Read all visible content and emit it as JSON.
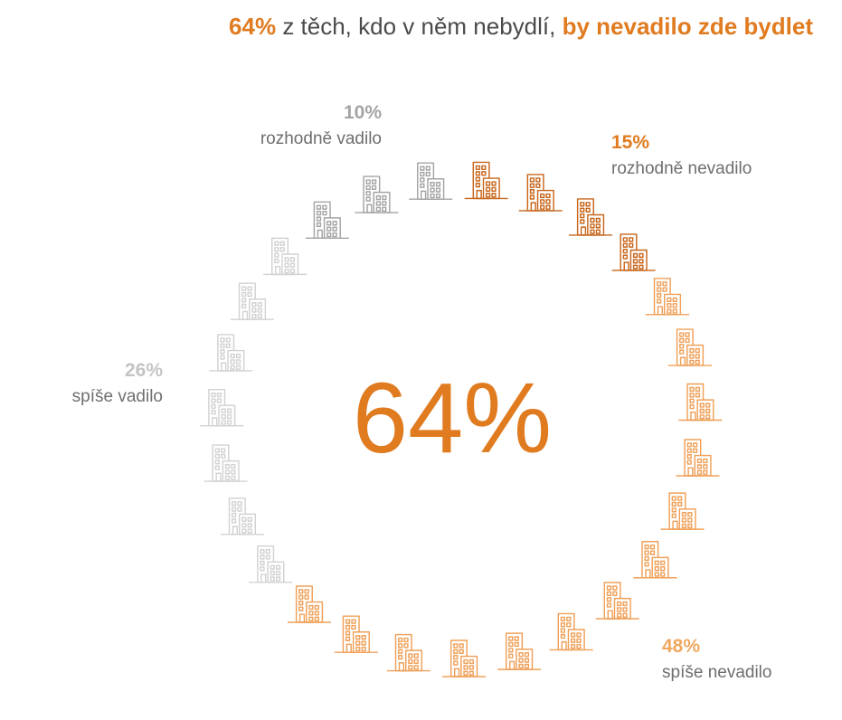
{
  "title": {
    "part1": "64%",
    "part2": " z těch, kdo v něm nebydlí, ",
    "part3": "by nevadilo zde bydlet"
  },
  "center_value": "64%",
  "colors": {
    "accent": "#e07b20",
    "text": "#4a4a4a"
  },
  "chart_data": {
    "type": "pie",
    "style": "icon-ring",
    "icon": "building-icon",
    "total_icons": 27,
    "title": "64% z těch, kdo v něm nebydlí, by nevadilo zde bydlet",
    "center_label": "64%",
    "series": [
      {
        "name": "rozhodně nevadilo",
        "pct": "15%",
        "value": 15,
        "icons": 4,
        "color": "#c8661b",
        "label_color": "#e07b20"
      },
      {
        "name": "spíše nevadilo",
        "pct": "48%",
        "value": 48,
        "icons": 13,
        "color": "#f0a058",
        "label_color": "#f0a860"
      },
      {
        "name": "spíše vadilo",
        "pct": "26%",
        "value": 26,
        "icons": 7,
        "color": "#d2d2d2",
        "label_color": "#c4c4c4"
      },
      {
        "name": "rozhodně vadilo",
        "pct": "10%",
        "value": 10,
        "icons": 3,
        "color": "#a4a4a4",
        "label_color": "#a4a4a4"
      }
    ]
  }
}
